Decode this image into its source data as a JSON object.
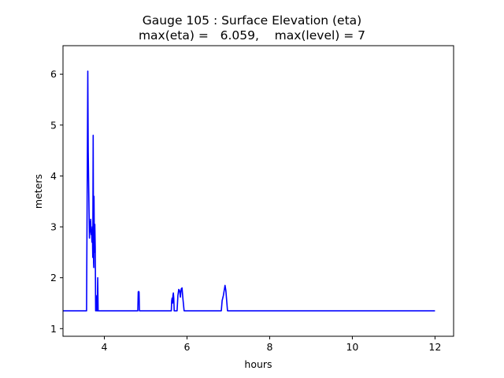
{
  "chart_data": {
    "type": "line",
    "title": "Gauge 105 : Surface Elevation (eta)",
    "subtitle": "max(eta) =   6.059,    max(level) = 7",
    "xlabel": "hours",
    "ylabel": "meters",
    "xlim": [
      3.0,
      12.45
    ],
    "ylim": [
      0.85,
      6.56
    ],
    "xticks": [
      4,
      6,
      8,
      10,
      12
    ],
    "yticks": [
      1,
      2,
      3,
      4,
      5,
      6
    ],
    "grid": false,
    "series": [
      {
        "color": "#0000ff",
        "x": [
          3.0,
          3.55,
          3.57,
          3.6,
          3.61,
          3.63,
          3.64,
          3.65,
          3.66,
          3.67,
          3.68,
          3.69,
          3.7,
          3.71,
          3.72,
          3.73,
          3.74,
          3.745,
          3.75,
          3.76,
          3.77,
          3.78,
          3.79,
          3.8,
          3.81,
          3.82,
          3.83,
          3.84,
          3.85,
          3.86,
          3.87,
          3.88,
          3.9,
          4.8,
          4.81,
          4.82,
          4.83,
          4.84,
          4.85,
          4.86,
          4.87,
          5.6,
          5.62,
          5.63,
          5.64,
          5.65,
          5.66,
          5.67,
          5.68,
          5.69,
          5.72,
          5.76,
          5.78,
          5.8,
          5.82,
          5.84,
          5.86,
          5.88,
          5.9,
          5.93,
          5.96,
          6.0,
          6.75,
          6.83,
          6.85,
          6.88,
          6.9,
          6.92,
          6.94,
          6.96,
          6.98,
          7.0,
          7.02,
          12.0
        ],
        "y": [
          1.35,
          1.35,
          1.35,
          6.06,
          4.5,
          3.3,
          2.78,
          3.1,
          2.9,
          3.15,
          2.85,
          2.95,
          2.7,
          3.0,
          2.4,
          4.8,
          2.3,
          2.2,
          3.6,
          2.5,
          3.05,
          2.6,
          1.35,
          1.45,
          1.35,
          1.65,
          1.35,
          2.0,
          1.35,
          1.35,
          1.35,
          1.35,
          1.35,
          1.35,
          1.35,
          1.72,
          1.73,
          1.72,
          1.35,
          1.35,
          1.35,
          1.35,
          1.35,
          1.55,
          1.6,
          1.5,
          1.65,
          1.7,
          1.6,
          1.35,
          1.35,
          1.35,
          1.65,
          1.77,
          1.75,
          1.62,
          1.78,
          1.8,
          1.6,
          1.35,
          1.35,
          1.35,
          1.35,
          1.35,
          1.55,
          1.65,
          1.75,
          1.85,
          1.75,
          1.55,
          1.35,
          1.35,
          1.35,
          1.35
        ]
      }
    ]
  }
}
